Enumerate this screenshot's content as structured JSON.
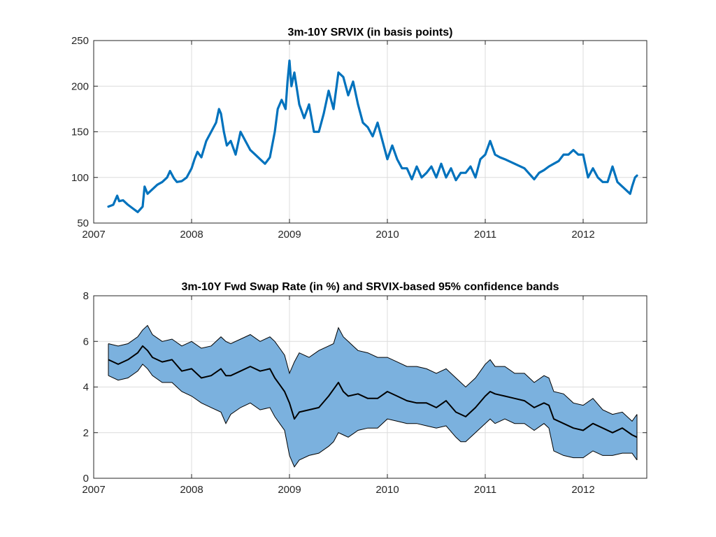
{
  "chart_data": [
    {
      "type": "line",
      "title": "3m-10Y SRVIX (in basis points)",
      "xlabel": "",
      "ylabel": "",
      "xlim": [
        2007.0,
        2012.65
      ],
      "ylim": [
        50,
        250
      ],
      "xticks": [
        2007,
        2008,
        2009,
        2010,
        2011,
        2012
      ],
      "yticks": [
        50,
        100,
        150,
        200,
        250
      ],
      "grid": true,
      "colors": {
        "series": "#0072BD"
      },
      "series": [
        {
          "x": [
            2007.15,
            2007.2,
            2007.24,
            2007.26,
            2007.3,
            2007.35,
            2007.4,
            2007.45,
            2007.5,
            2007.52,
            2007.55,
            2007.6,
            2007.65,
            2007.7,
            2007.75,
            2007.78,
            2007.82,
            2007.85,
            2007.9,
            2007.95,
            2008.0,
            2008.03,
            2008.06,
            2008.1,
            2008.15,
            2008.2,
            2008.25,
            2008.28,
            2008.3,
            2008.33,
            2008.36,
            2008.4,
            2008.45,
            2008.5,
            2008.55,
            2008.6,
            2008.65,
            2008.7,
            2008.75,
            2008.8,
            2008.85,
            2008.88,
            2008.92,
            2008.96,
            2008.98,
            2009.0,
            2009.02,
            2009.05,
            2009.1,
            2009.15,
            2009.2,
            2009.25,
            2009.3,
            2009.35,
            2009.4,
            2009.45,
            2009.5,
            2009.55,
            2009.6,
            2009.65,
            2009.7,
            2009.75,
            2009.8,
            2009.85,
            2009.9,
            2009.95,
            2010.0,
            2010.05,
            2010.1,
            2010.15,
            2010.2,
            2010.25,
            2010.3,
            2010.35,
            2010.4,
            2010.45,
            2010.5,
            2010.55,
            2010.6,
            2010.65,
            2010.7,
            2010.75,
            2010.8,
            2010.85,
            2010.9,
            2010.95,
            2011.0,
            2011.05,
            2011.1,
            2011.15,
            2011.2,
            2011.3,
            2011.4,
            2011.5,
            2011.55,
            2011.6,
            2011.65,
            2011.7,
            2011.75,
            2011.8,
            2011.85,
            2011.9,
            2011.95,
            2012.0,
            2012.05,
            2012.1,
            2012.15,
            2012.2,
            2012.25,
            2012.3,
            2012.35,
            2012.4,
            2012.45,
            2012.48,
            2012.5,
            2012.53,
            2012.55
          ],
          "y": [
            68,
            70,
            80,
            74,
            75,
            70,
            66,
            62,
            68,
            90,
            82,
            87,
            92,
            95,
            100,
            107,
            99,
            95,
            96,
            100,
            110,
            120,
            128,
            122,
            140,
            150,
            160,
            175,
            170,
            150,
            135,
            140,
            125,
            150,
            140,
            130,
            125,
            120,
            115,
            122,
            150,
            175,
            185,
            175,
            205,
            228,
            200,
            215,
            180,
            165,
            180,
            150,
            150,
            170,
            195,
            175,
            215,
            210,
            190,
            205,
            180,
            160,
            155,
            145,
            160,
            140,
            120,
            135,
            120,
            110,
            110,
            98,
            112,
            100,
            105,
            112,
            100,
            115,
            100,
            110,
            97,
            105,
            105,
            112,
            100,
            120,
            125,
            140,
            125,
            122,
            120,
            115,
            110,
            98,
            105,
            108,
            112,
            115,
            118,
            125,
            125,
            130,
            125,
            125,
            100,
            110,
            100,
            95,
            95,
            112,
            95,
            90,
            85,
            82,
            90,
            100,
            102
          ]
        }
      ]
    },
    {
      "type": "area",
      "title": "3m-10Y Fwd Swap Rate (in %) and SRVIX-based 95% confidence bands",
      "xlabel": "",
      "ylabel": "",
      "xlim": [
        2007.0,
        2012.65
      ],
      "ylim": [
        0,
        8
      ],
      "xticks": [
        2007,
        2008,
        2009,
        2010,
        2011,
        2012
      ],
      "yticks": [
        0,
        2,
        4,
        6,
        8
      ],
      "grid": true,
      "colors": {
        "band_fill": "#7BB1DE",
        "band_edge": "#000000",
        "rate": "#000000"
      },
      "x": [
        2007.15,
        2007.25,
        2007.35,
        2007.45,
        2007.5,
        2007.55,
        2007.6,
        2007.7,
        2007.8,
        2007.9,
        2008.0,
        2008.1,
        2008.2,
        2008.3,
        2008.35,
        2008.4,
        2008.5,
        2008.6,
        2008.7,
        2008.8,
        2008.85,
        2008.9,
        2008.95,
        2009.0,
        2009.05,
        2009.1,
        2009.2,
        2009.3,
        2009.4,
        2009.45,
        2009.5,
        2009.55,
        2009.6,
        2009.7,
        2009.8,
        2009.9,
        2010.0,
        2010.1,
        2010.2,
        2010.3,
        2010.4,
        2010.5,
        2010.6,
        2010.7,
        2010.75,
        2010.8,
        2010.9,
        2011.0,
        2011.05,
        2011.1,
        2011.2,
        2011.3,
        2011.4,
        2011.5,
        2011.6,
        2011.65,
        2011.7,
        2011.8,
        2011.9,
        2012.0,
        2012.1,
        2012.2,
        2012.3,
        2012.4,
        2012.5,
        2012.55
      ],
      "series": [
        {
          "name": "Upper band",
          "values": [
            5.9,
            5.8,
            5.9,
            6.2,
            6.5,
            6.7,
            6.3,
            6.0,
            6.1,
            5.8,
            6.0,
            5.7,
            5.8,
            6.2,
            6.0,
            5.9,
            6.1,
            6.3,
            6.0,
            6.2,
            6.0,
            5.7,
            5.4,
            4.6,
            5.1,
            5.5,
            5.3,
            5.6,
            5.8,
            5.9,
            6.6,
            6.2,
            6.0,
            5.6,
            5.5,
            5.3,
            5.3,
            5.1,
            4.9,
            4.9,
            4.8,
            4.6,
            4.8,
            4.4,
            4.2,
            4.0,
            4.4,
            5.0,
            5.2,
            4.9,
            4.9,
            4.6,
            4.6,
            4.2,
            4.5,
            4.4,
            3.8,
            3.7,
            3.3,
            3.2,
            3.5,
            3.0,
            2.8,
            2.9,
            2.5,
            2.8
          ]
        },
        {
          "name": "Swap rate",
          "values": [
            5.2,
            5.0,
            5.2,
            5.5,
            5.8,
            5.6,
            5.3,
            5.1,
            5.2,
            4.7,
            4.8,
            4.4,
            4.5,
            4.8,
            4.5,
            4.5,
            4.7,
            4.9,
            4.7,
            4.8,
            4.4,
            4.1,
            3.8,
            3.3,
            2.6,
            2.9,
            3.0,
            3.1,
            3.6,
            3.9,
            4.2,
            3.8,
            3.6,
            3.7,
            3.5,
            3.5,
            3.8,
            3.6,
            3.4,
            3.3,
            3.3,
            3.1,
            3.4,
            2.9,
            2.8,
            2.7,
            3.1,
            3.6,
            3.8,
            3.7,
            3.6,
            3.5,
            3.4,
            3.1,
            3.3,
            3.2,
            2.6,
            2.4,
            2.2,
            2.1,
            2.4,
            2.2,
            2.0,
            2.2,
            1.9,
            1.8
          ]
        },
        {
          "name": "Lower band",
          "values": [
            4.5,
            4.3,
            4.4,
            4.7,
            5.0,
            4.8,
            4.5,
            4.2,
            4.2,
            3.8,
            3.6,
            3.3,
            3.1,
            2.9,
            2.4,
            2.8,
            3.1,
            3.3,
            3.0,
            3.1,
            2.7,
            2.4,
            2.1,
            1.0,
            0.5,
            0.8,
            1.0,
            1.1,
            1.4,
            1.6,
            2.0,
            1.9,
            1.8,
            2.1,
            2.2,
            2.2,
            2.6,
            2.5,
            2.4,
            2.4,
            2.3,
            2.2,
            2.3,
            1.8,
            1.6,
            1.6,
            2.0,
            2.4,
            2.6,
            2.4,
            2.6,
            2.4,
            2.4,
            2.1,
            2.4,
            2.2,
            1.2,
            1.0,
            0.9,
            0.9,
            1.2,
            1.0,
            1.0,
            1.1,
            1.1,
            0.8
          ]
        }
      ]
    }
  ]
}
